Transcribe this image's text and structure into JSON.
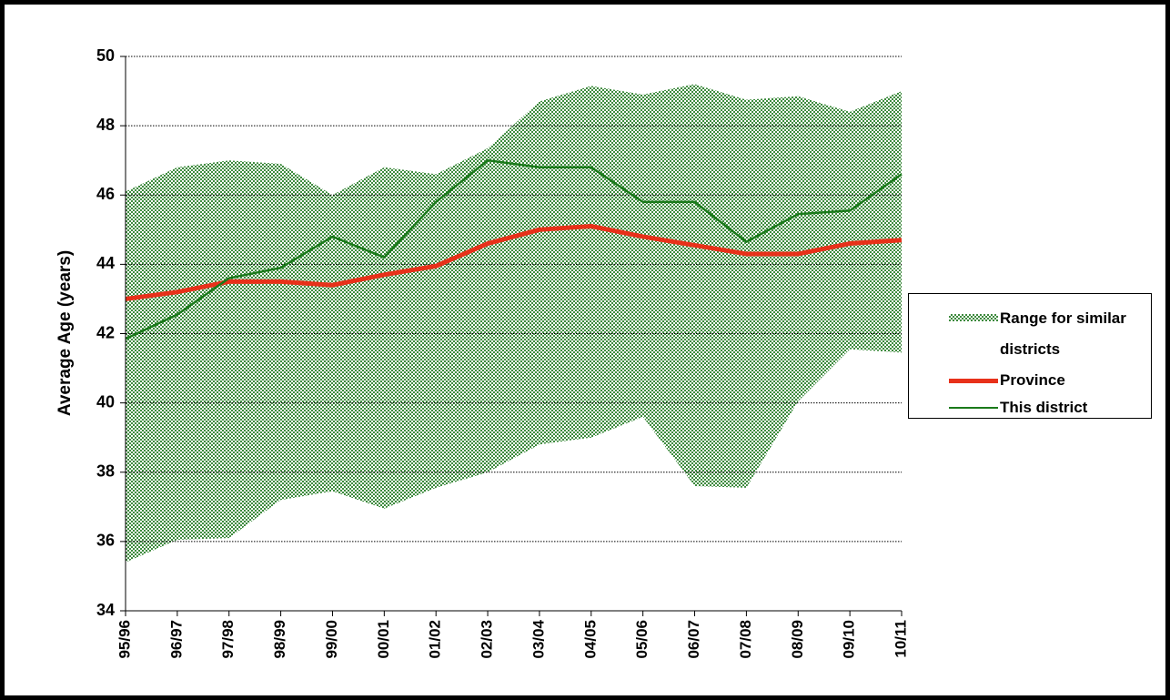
{
  "chart_data": {
    "type": "line",
    "y_label": "Average Age (years)",
    "categories": [
      "95/96",
      "96/97",
      "97/98",
      "98/99",
      "99/00",
      "00/01",
      "01/02",
      "02/03",
      "03/04",
      "04/05",
      "05/06",
      "06/07",
      "07/08",
      "08/09",
      "09/10",
      "10/11"
    ],
    "ylim": [
      34,
      50
    ],
    "yticks": [
      34,
      36,
      38,
      40,
      42,
      44,
      46,
      48,
      50
    ],
    "grid": true,
    "series": [
      {
        "name": "Range for similar districts",
        "type": "range",
        "color": "#3e8b3e",
        "low": [
          35.4,
          36.05,
          36.1,
          37.2,
          37.45,
          36.95,
          37.55,
          38.0,
          38.8,
          39.0,
          39.6,
          37.6,
          37.55,
          40.05,
          41.55,
          41.45
        ],
        "high": [
          46.1,
          46.8,
          47.0,
          46.9,
          46.0,
          46.8,
          46.6,
          47.35,
          48.7,
          49.15,
          48.9,
          49.2,
          48.75,
          48.85,
          48.4,
          49.0
        ]
      },
      {
        "name": "Province",
        "color": "#e8311a",
        "width": 5,
        "values": [
          43.0,
          43.2,
          43.5,
          43.5,
          43.4,
          43.7,
          43.95,
          44.6,
          45.0,
          45.1,
          44.8,
          44.55,
          44.3,
          44.3,
          44.6,
          44.7
        ]
      },
      {
        "name": "This district",
        "color": "#1a7a1a",
        "width": 2.5,
        "values": [
          41.85,
          42.55,
          43.6,
          43.9,
          44.8,
          44.2,
          45.8,
          47.0,
          46.8,
          46.8,
          45.8,
          45.8,
          44.65,
          45.45,
          45.55,
          46.6
        ]
      }
    ]
  }
}
